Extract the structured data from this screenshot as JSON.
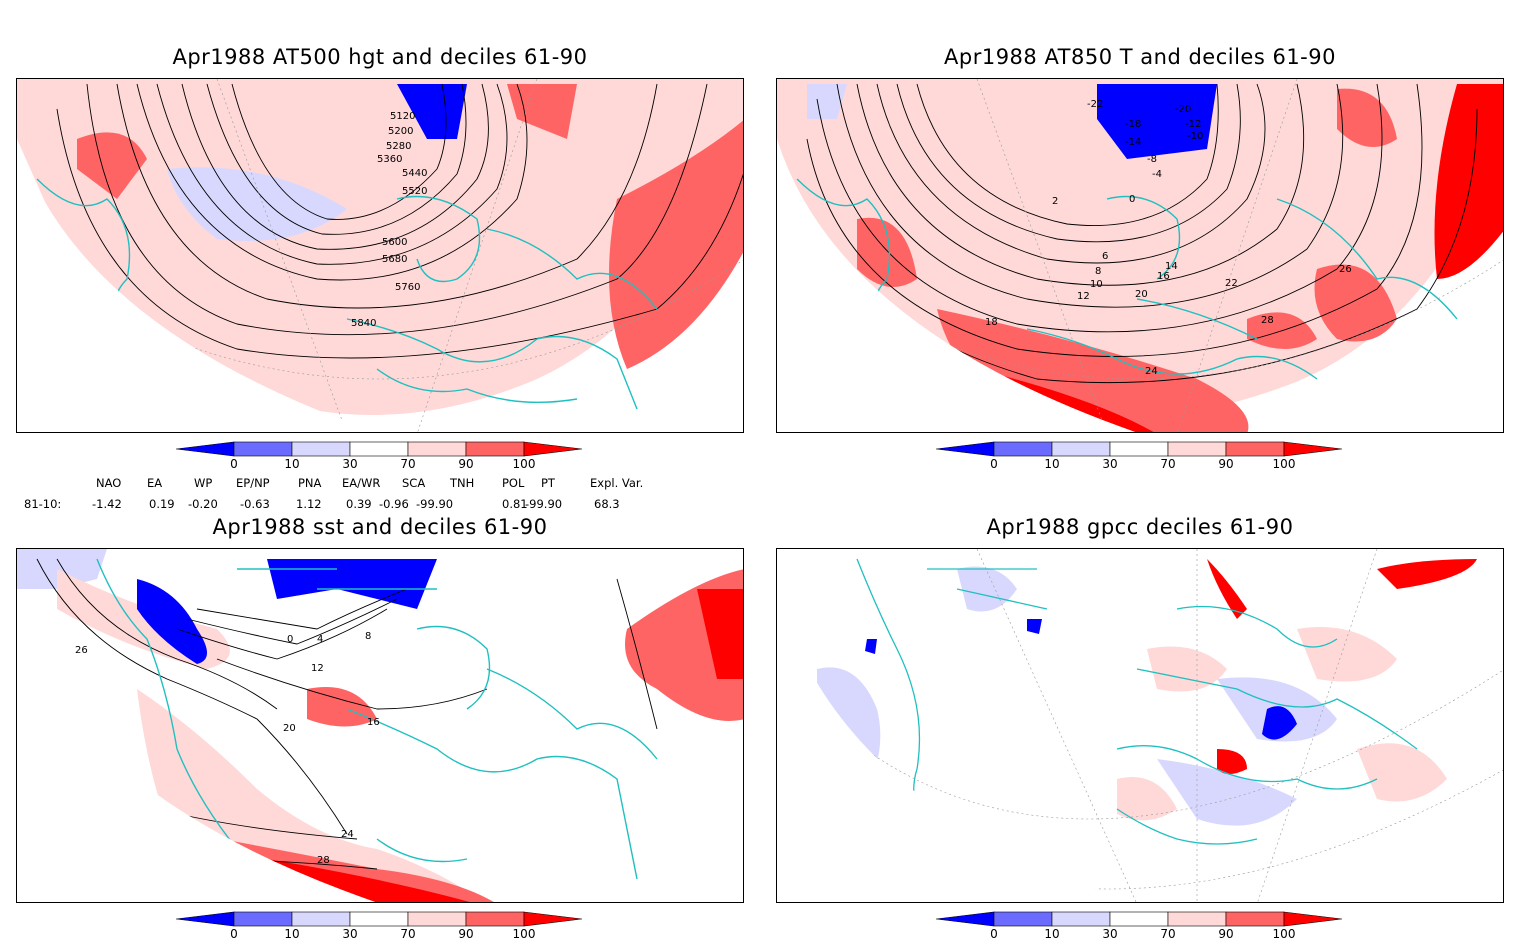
{
  "panels": [
    {
      "title": "Apr1988 AT500 hgt and deciles 61-90",
      "contour_labels": [
        "5120",
        "5200",
        "5280",
        "5360",
        "5440",
        "5520",
        "5600",
        "5680",
        "5760",
        "5840"
      ]
    },
    {
      "title": "Apr1988 AT850 T and deciles 61-90",
      "contour_labels": [
        "-22",
        "-20",
        "-18",
        "-14",
        "-12",
        "-10",
        "-8",
        "-4",
        "0",
        "2",
        "6",
        "8",
        "10",
        "12",
        "14",
        "16",
        "18",
        "20",
        "22",
        "24",
        "26",
        "28"
      ]
    },
    {
      "title": "Apr1988 sst and deciles 61-90",
      "contour_labels": [
        "0",
        "4",
        "8",
        "12",
        "16",
        "20",
        "24",
        "26",
        "28"
      ]
    },
    {
      "title": "Apr1988 gpcc deciles 61-90",
      "contour_labels": []
    }
  ],
  "colorbar": {
    "ticks": [
      "0",
      "10",
      "30",
      "70",
      "90",
      "100"
    ],
    "colors": [
      "#0000ff",
      "#6b6bff",
      "#d8d8ff",
      "#ffffff",
      "#ffd8d8",
      "#ff6464",
      "#ff0000"
    ]
  },
  "indices": {
    "headers": [
      "NAO",
      "EA",
      "WP",
      "EP/NP",
      "PNA",
      "EA/WR",
      "SCA",
      "TNH",
      "POL",
      "PT",
      "Expl. Var."
    ],
    "row_label": "81-10:",
    "values": [
      "-1.42",
      "0.19",
      "-0.20",
      "-0.63",
      "1.12",
      "0.39",
      "-0.96",
      "-99.90",
      "0.81",
      "-99.90",
      "68.3"
    ]
  },
  "style": {
    "coast": "#20c0c0",
    "grid": "#999999",
    "contour": "#000000"
  }
}
